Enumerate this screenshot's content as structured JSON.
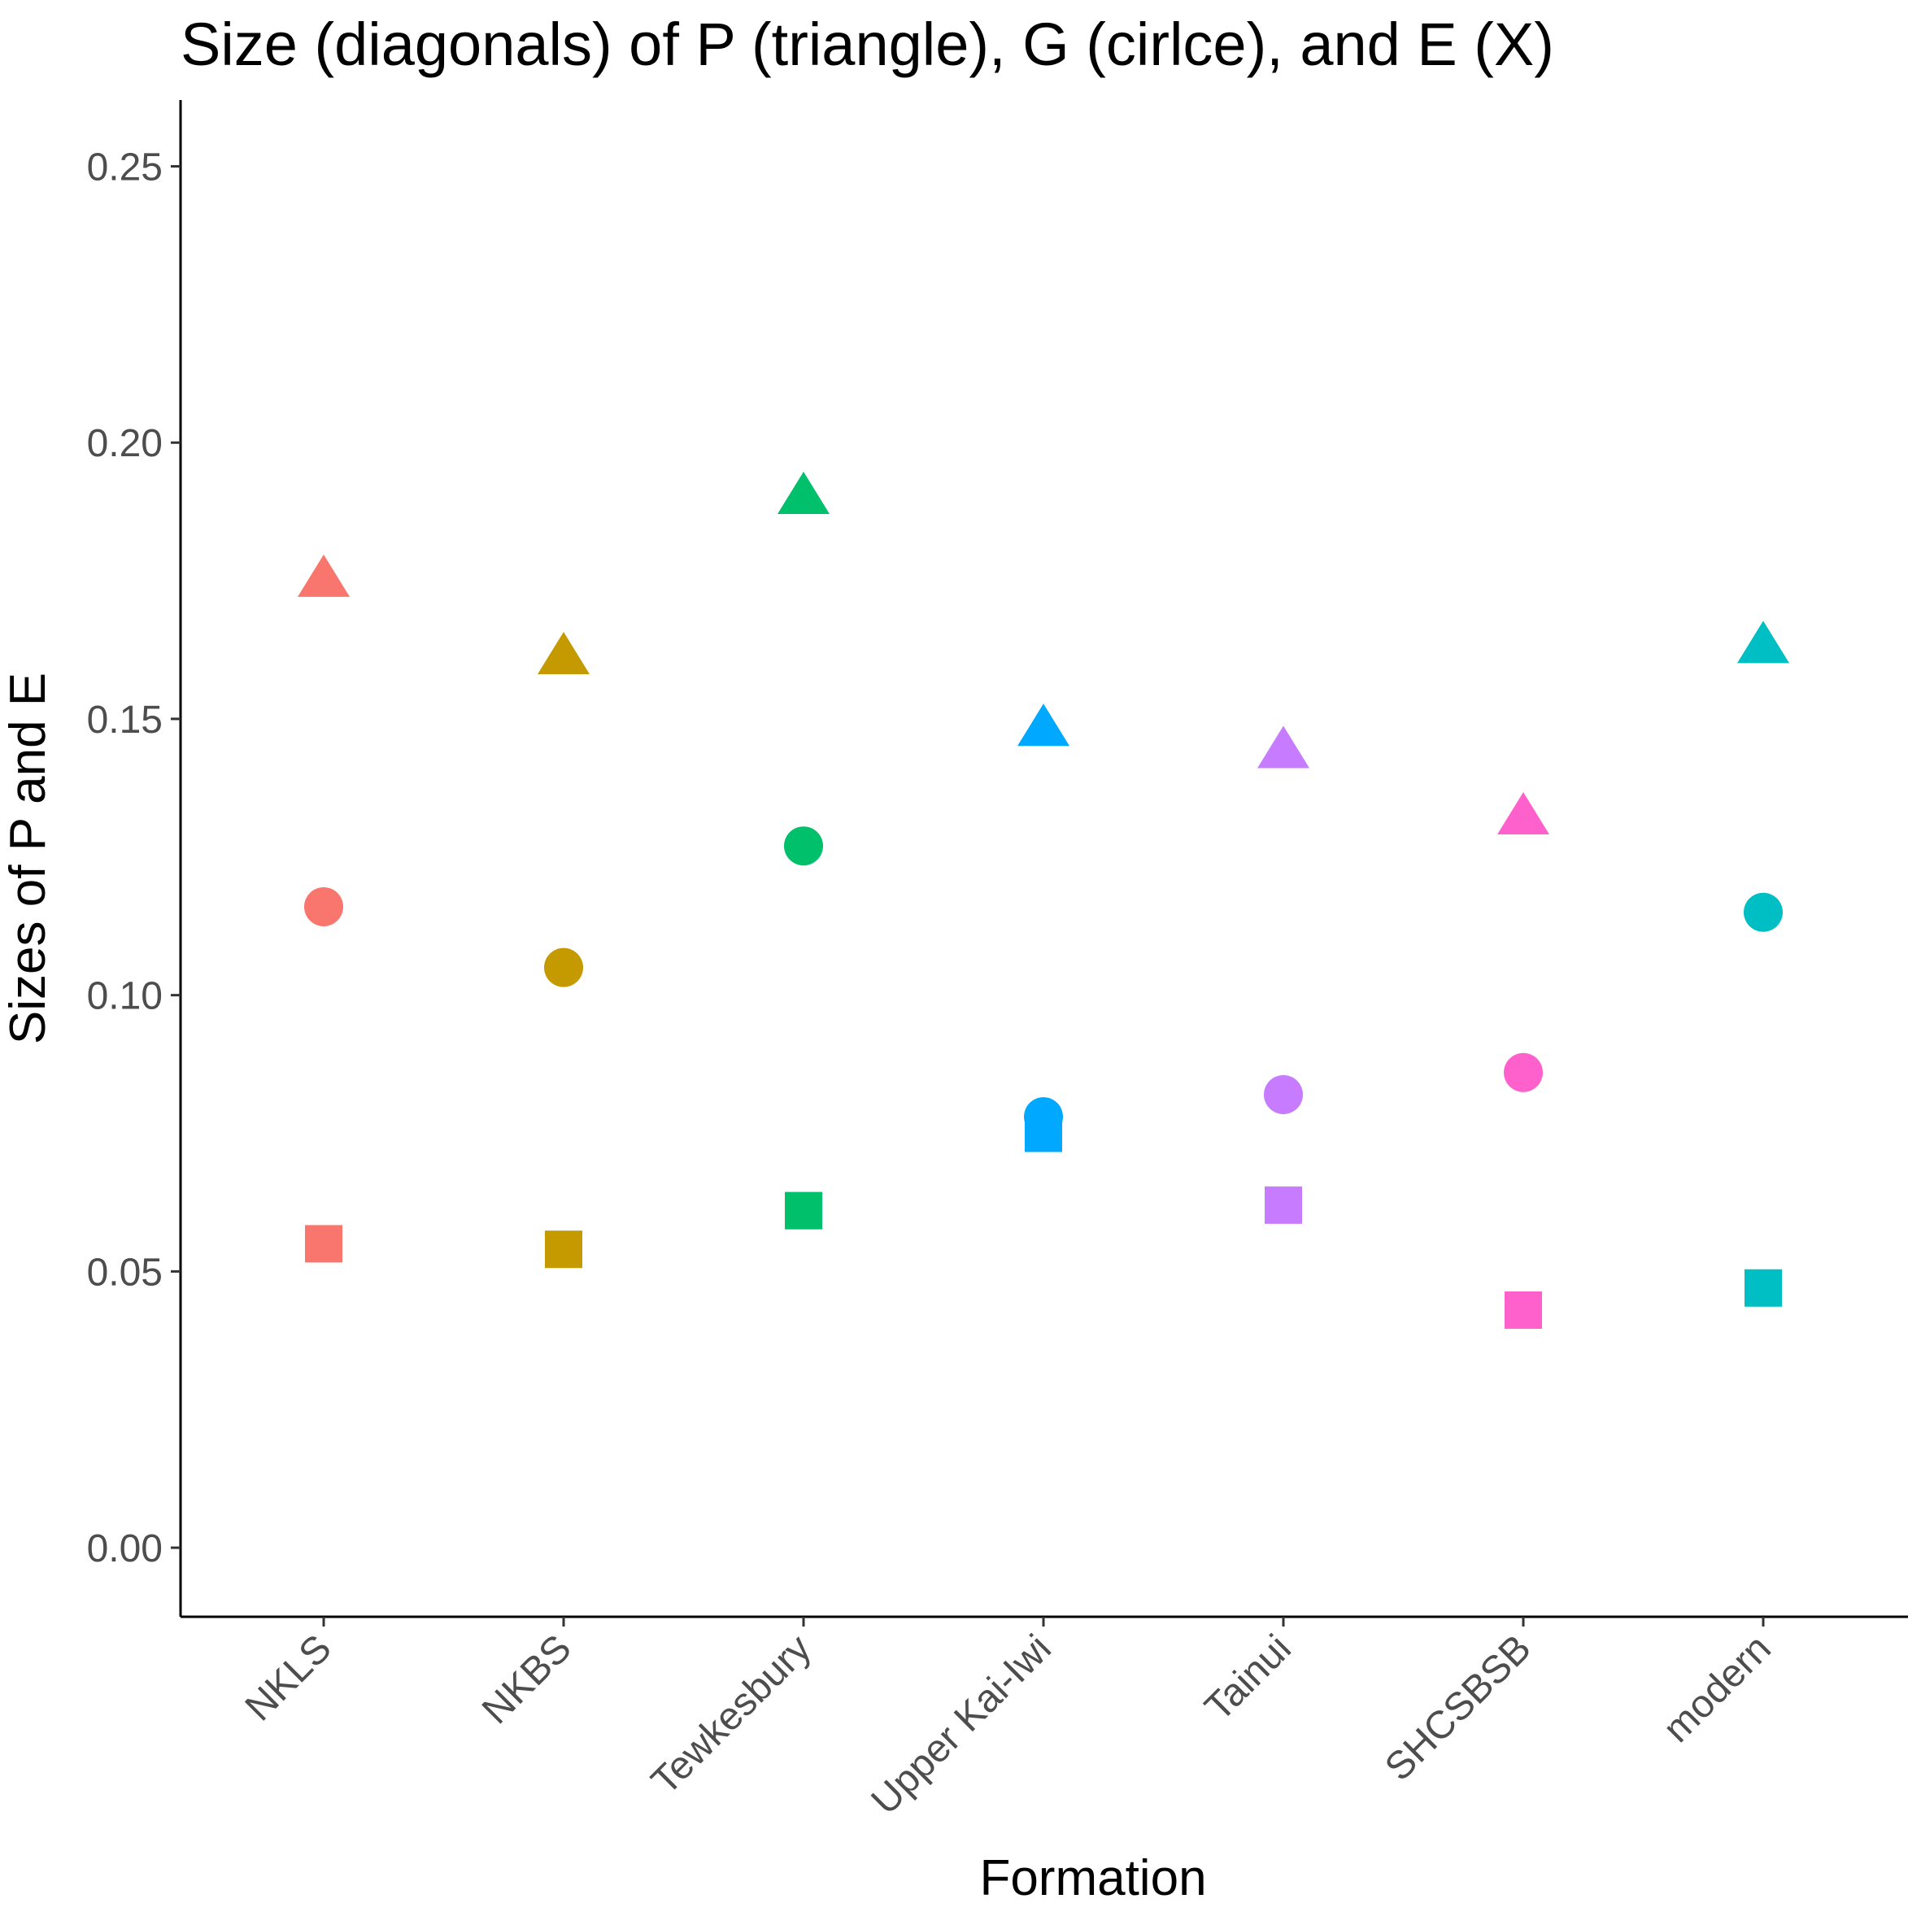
{
  "chart_data": {
    "type": "scatter",
    "title": "Size (diagonals) of P (triangle), G (cirlce), and E (X)",
    "xlabel": "Formation",
    "ylabel": "Sizes of P and E",
    "categories": [
      "NKLS",
      "NKBS",
      "Tewkesbury",
      "Upper Kai-Iwi",
      "Tainui",
      "SHCSBSB",
      "modern"
    ],
    "colors": [
      "#F8766D",
      "#C49A00",
      "#00C06B",
      "#00A9FF",
      "#C77CFF",
      "#FF61CC",
      "#00BFC4"
    ],
    "ylim": [
      -0.0125,
      0.262
    ],
    "yticks": [
      0.0,
      0.05,
      0.1,
      0.15,
      0.2,
      0.25
    ],
    "ytick_labels": [
      "0.00",
      "0.05",
      "0.10",
      "0.15",
      "0.20",
      "0.25"
    ],
    "grid": false,
    "legend": "none",
    "series": [
      {
        "marker": "triangle",
        "values": [
          0.175,
          0.161,
          0.19,
          0.148,
          0.144,
          0.132,
          0.163
        ]
      },
      {
        "marker": "circle",
        "values": [
          0.116,
          0.105,
          0.127,
          0.078,
          0.082,
          0.086,
          0.115
        ]
      },
      {
        "marker": "square",
        "values": [
          0.055,
          0.054,
          0.061,
          0.075,
          0.062,
          0.043,
          0.047
        ]
      }
    ]
  }
}
